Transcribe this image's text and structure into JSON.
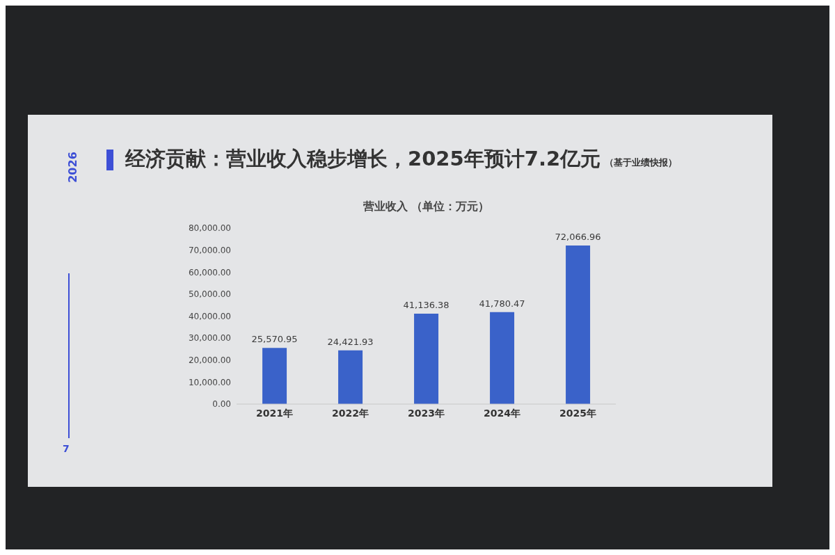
{
  "chart_data": {
    "type": "bar",
    "title": "经济贡献：营业收入稳步增长，2025年预计7.2亿元",
    "subtitle": "营业收入 （单位：万元）",
    "annotations": [
      "（基于业绩快报）",
      "2026",
      "7"
    ],
    "categories": [
      "2021年",
      "2022年",
      "2023年",
      "2024年",
      "2025年"
    ],
    "values": [
      25570.95,
      24421.93,
      41136.38,
      41780.47,
      72066.96
    ],
    "value_labels": [
      "25,570.95",
      "24,421.93",
      "41,136.38",
      "41,780.47",
      "72,066.96"
    ],
    "color": "#3a62c9",
    "ylim": [
      0,
      80000
    ],
    "yticks": [
      {
        "value": 0,
        "label": "0.00"
      },
      {
        "value": 10000,
        "label": "10,000.00"
      },
      {
        "value": 20000,
        "label": "20,000.00"
      },
      {
        "value": 30000,
        "label": "30,000.00"
      },
      {
        "value": 40000,
        "label": "40,000.00"
      },
      {
        "value": 50000,
        "label": "50,000.00"
      },
      {
        "value": 60000,
        "label": "60,000.00"
      },
      {
        "value": 70000,
        "label": "70,000.00"
      },
      {
        "value": 80000,
        "label": "80,000.00"
      }
    ],
    "grid": false,
    "legend": false
  }
}
